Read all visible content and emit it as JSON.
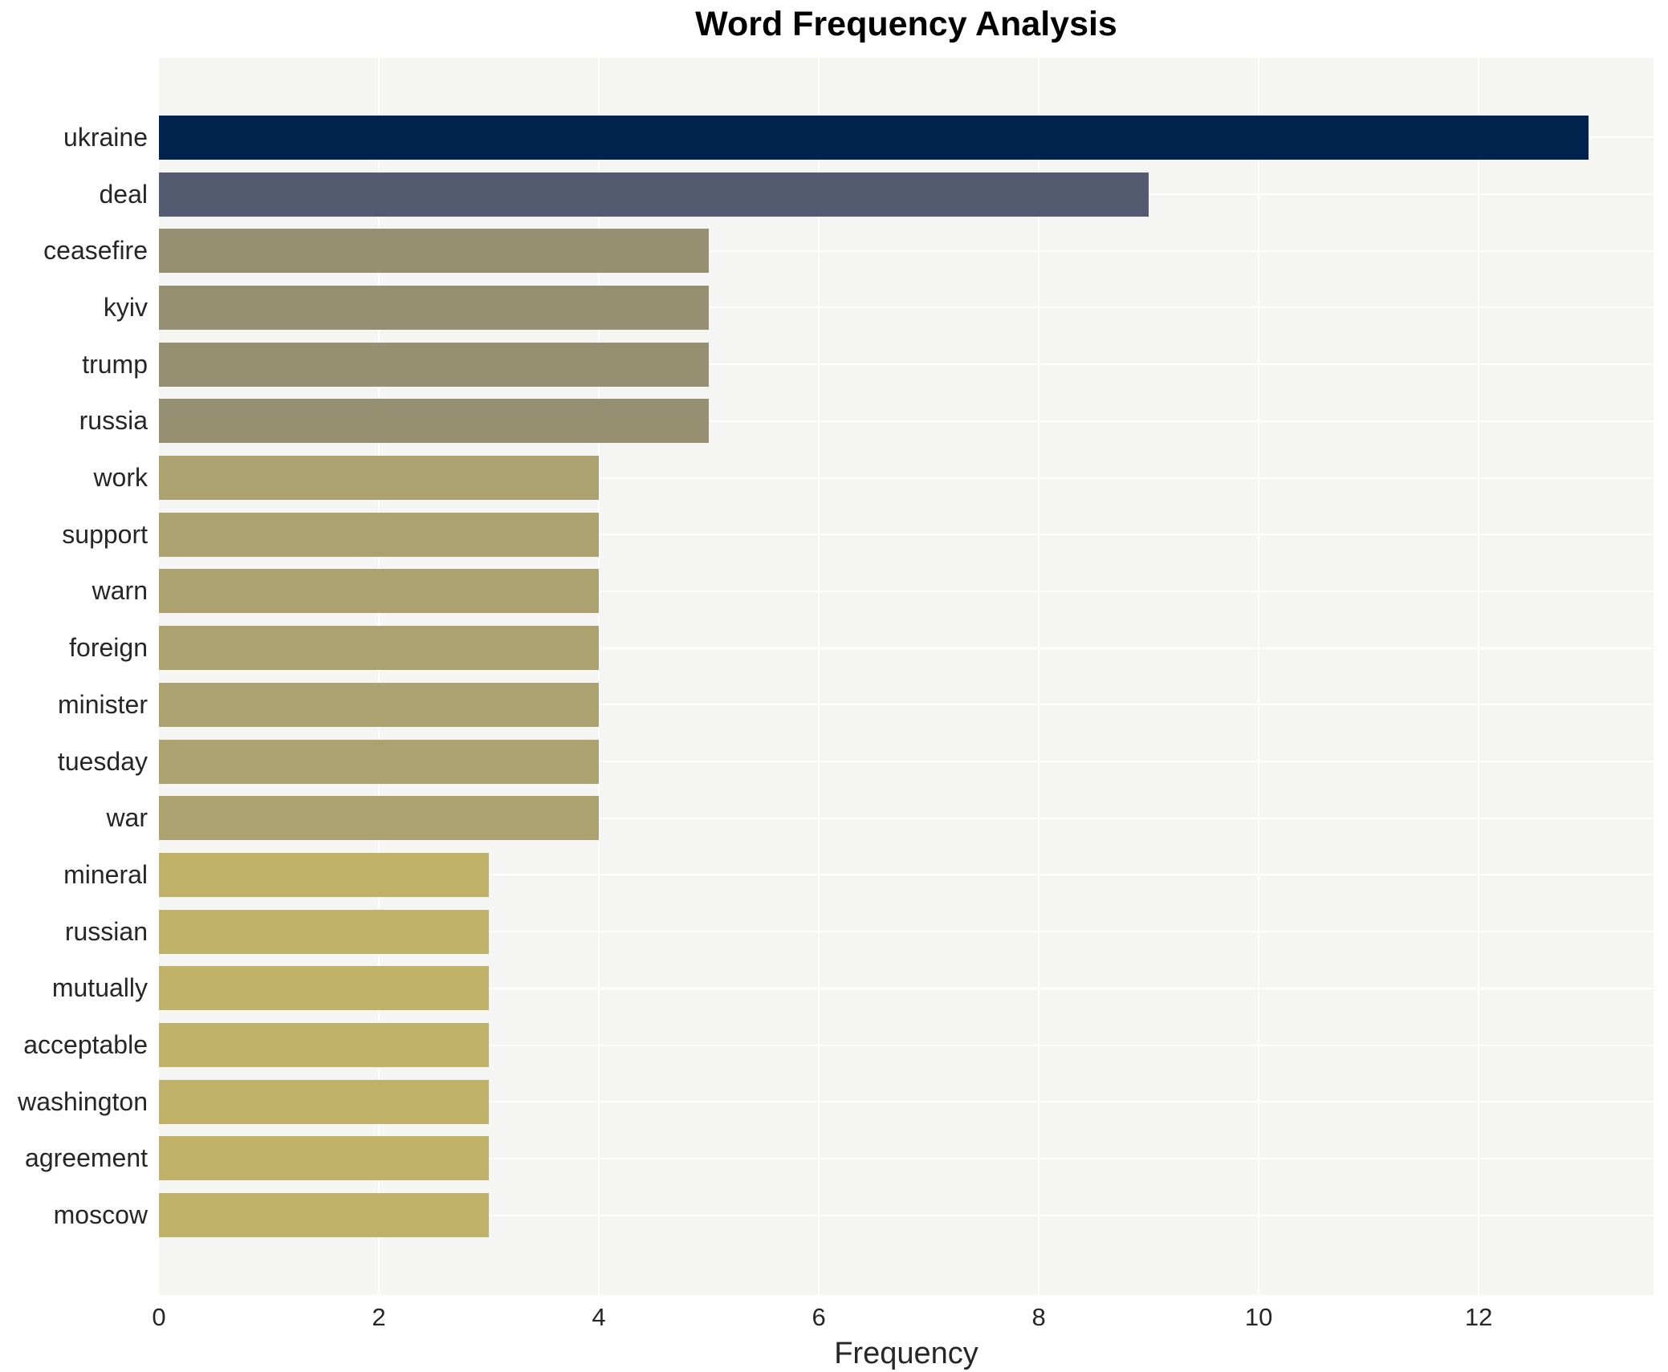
{
  "title": "Word Frequency Analysis",
  "xlabel": "Frequency",
  "colors": {
    "figure_background": "#ffffff",
    "plot_background": "#f5f5f3",
    "gridline": "#ffffff",
    "tick_text": "#262626",
    "title_text": "#000000"
  },
  "chart_data": {
    "type": "bar",
    "orientation": "horizontal",
    "title": "Word Frequency Analysis",
    "xlabel": "Frequency",
    "ylabel": "",
    "xlim": [
      0,
      13.59
    ],
    "x_ticks": [
      0,
      2,
      4,
      6,
      8,
      10,
      12
    ],
    "grid": true,
    "legend": false,
    "categories": [
      "ukraine",
      "deal",
      "ceasefire",
      "kyiv",
      "trump",
      "russia",
      "work",
      "support",
      "warn",
      "foreign",
      "minister",
      "tuesday",
      "war",
      "mineral",
      "russian",
      "mutually",
      "acceptable",
      "washington",
      "agreement",
      "moscow"
    ],
    "values": [
      13,
      9,
      5,
      5,
      5,
      5,
      4,
      4,
      4,
      4,
      4,
      4,
      4,
      3,
      3,
      3,
      3,
      3,
      3,
      3
    ],
    "bar_colors": [
      "#02234e",
      "#545b71",
      "#959072",
      "#959072",
      "#959072",
      "#959072",
      "#aba26f",
      "#aba26f",
      "#aba26f",
      "#aba26f",
      "#aba26f",
      "#aba26f",
      "#aba26f",
      "#c0b269",
      "#c0b269",
      "#c0b269",
      "#c0b269",
      "#c0b269",
      "#c0b269",
      "#c0b269"
    ]
  }
}
